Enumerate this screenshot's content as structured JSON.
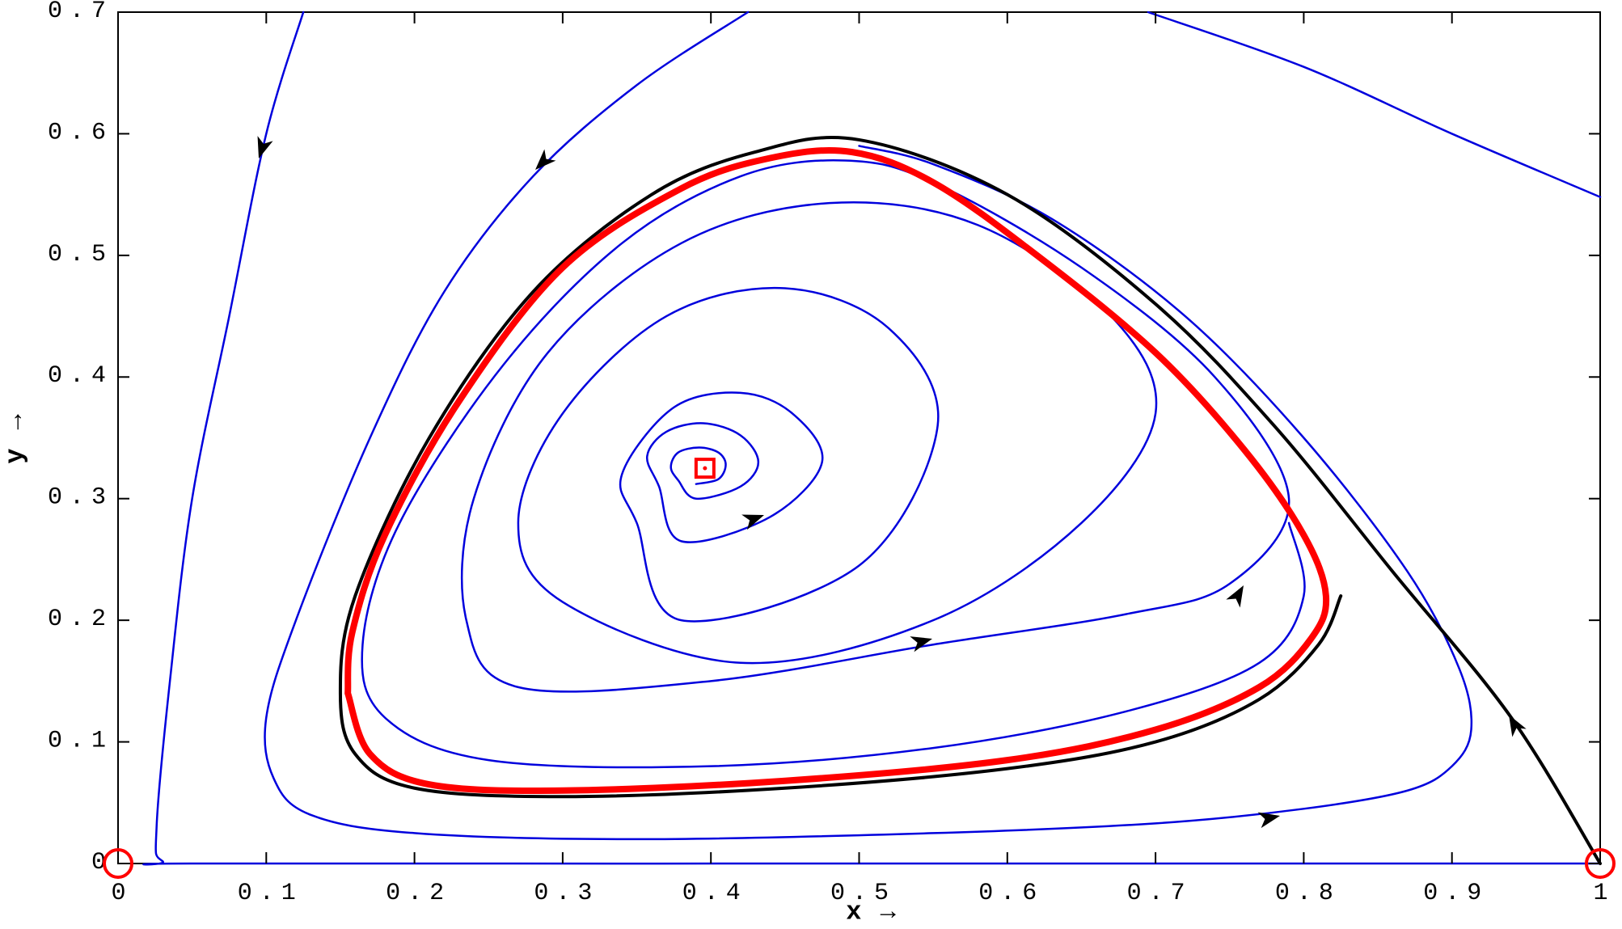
{
  "chart_data": {
    "type": "line",
    "x_label": "x →",
    "y_label": "y →",
    "xlim": [
      0,
      1
    ],
    "ylim": [
      0,
      0.7
    ],
    "xticks": [
      0,
      0.1,
      0.2,
      0.3,
      0.4,
      0.5,
      0.6,
      0.7,
      0.8,
      0.9,
      1
    ],
    "yticks": [
      0,
      0.1,
      0.2,
      0.3,
      0.4,
      0.5,
      0.6,
      0.7
    ],
    "series": [
      {
        "color": "#0000dd",
        "width": 2.5,
        "x": [
          0.125,
          0.1,
          0.075,
          0.05,
          0.035,
          0.026,
          0.03,
          0.06,
          0.5,
          1
        ],
        "y": [
          0.7,
          0.6,
          0.45,
          0.3,
          0.15,
          0.03,
          0.002,
          0,
          0,
          0
        ]
      },
      {
        "color": "#0000dd",
        "width": 2.5,
        "x": [
          0.425,
          0.35,
          0.28,
          0.22,
          0.17,
          0.12,
          0.1,
          0.105,
          0.13,
          0.2,
          0.35,
          0.55,
          0.7,
          0.8,
          0.87,
          0.9,
          0.913,
          0.905,
          0.87,
          0.8,
          0.72,
          0.63,
          0.55,
          0.5
        ],
        "y": [
          0.7,
          0.64,
          0.565,
          0.47,
          0.35,
          0.2,
          0.12,
          0.07,
          0.04,
          0.025,
          0.02,
          0.025,
          0.033,
          0.045,
          0.06,
          0.08,
          0.11,
          0.16,
          0.24,
          0.35,
          0.45,
          0.53,
          0.575,
          0.59
        ]
      },
      {
        "color": "#0000dd",
        "width": 2.5,
        "x": [
          0.695,
          0.8,
          0.9,
          1
        ],
        "y": [
          0.7,
          0.655,
          0.6,
          0.548
        ]
      },
      {
        "color": "#0000dd",
        "width": 2.5,
        "x": [
          0.39,
          0.405,
          0.41,
          0.405,
          0.392,
          0.378,
          0.373,
          0.378,
          0.39,
          0.42,
          0.432,
          0.42,
          0.395,
          0.37,
          0.357,
          0.365,
          0.38,
          0.44,
          0.475,
          0.455,
          0.42,
          0.375,
          0.34,
          0.35,
          0.38,
          0.5,
          0.553,
          0.52,
          0.45,
          0.37,
          0.3,
          0.27,
          0.3,
          0.42,
          0.55,
          0.65,
          0.7,
          0.67,
          0.58,
          0.48,
          0.38,
          0.29,
          0.24,
          0.235,
          0.27,
          0.4,
          0.55,
          0.68,
          0.75,
          0.79,
          0.74,
          0.65,
          0.55,
          0.49,
          0.42,
          0.34,
          0.26,
          0.19,
          0.165,
          0.18,
          0.25,
          0.4,
          0.55,
          0.68,
          0.77,
          0.8,
          0.79
        ],
        "y": [
          0.312,
          0.316,
          0.328,
          0.338,
          0.342,
          0.338,
          0.326,
          0.315,
          0.3,
          0.31,
          0.33,
          0.352,
          0.362,
          0.355,
          0.335,
          0.31,
          0.265,
          0.285,
          0.33,
          0.37,
          0.387,
          0.375,
          0.32,
          0.28,
          0.2,
          0.245,
          0.36,
          0.44,
          0.473,
          0.45,
          0.37,
          0.28,
          0.215,
          0.165,
          0.2,
          0.28,
          0.37,
          0.45,
          0.525,
          0.543,
          0.51,
          0.42,
          0.3,
          0.2,
          0.145,
          0.15,
          0.18,
          0.205,
          0.23,
          0.3,
          0.4,
          0.49,
          0.56,
          0.578,
          0.565,
          0.51,
          0.41,
          0.28,
          0.18,
          0.12,
          0.085,
          0.08,
          0.095,
          0.125,
          0.165,
          0.22,
          0.28
        ]
      },
      {
        "color": "#000000",
        "width": 4,
        "x": [
          1,
          0.94,
          0.86,
          0.78,
          0.7,
          0.6,
          0.5,
          0.43,
          0.36,
          0.28,
          0.21,
          0.16,
          0.15,
          0.16,
          0.2,
          0.3,
          0.45,
          0.6,
          0.7,
          0.77,
          0.81,
          0.825
        ],
        "y": [
          0,
          0.12,
          0.24,
          0.36,
          0.46,
          0.55,
          0.595,
          0.585,
          0.55,
          0.47,
          0.35,
          0.22,
          0.14,
          0.09,
          0.062,
          0.055,
          0.062,
          0.078,
          0.1,
          0.135,
          0.18,
          0.22
        ]
      },
      {
        "color": "#ff0000",
        "width": 8,
        "x": [
          0.155,
          0.17,
          0.21,
          0.3,
          0.45,
          0.6,
          0.7,
          0.77,
          0.805,
          0.815,
          0.8,
          0.76,
          0.7,
          0.62,
          0.55,
          0.495,
          0.44,
          0.38,
          0.3,
          0.23,
          0.18,
          0.158,
          0.155
        ],
        "y": [
          0.14,
          0.09,
          0.065,
          0.06,
          0.068,
          0.085,
          0.11,
          0.145,
          0.185,
          0.22,
          0.27,
          0.34,
          0.42,
          0.5,
          0.56,
          0.585,
          0.58,
          0.555,
          0.49,
          0.38,
          0.27,
          0.19,
          0.14
        ]
      }
    ],
    "equilibria": {
      "color": "#ff0000",
      "x": [
        0,
        1,
        0.396
      ],
      "y": [
        0,
        0,
        0.325
      ],
      "markers": [
        "circle",
        "circle",
        "square"
      ]
    }
  }
}
